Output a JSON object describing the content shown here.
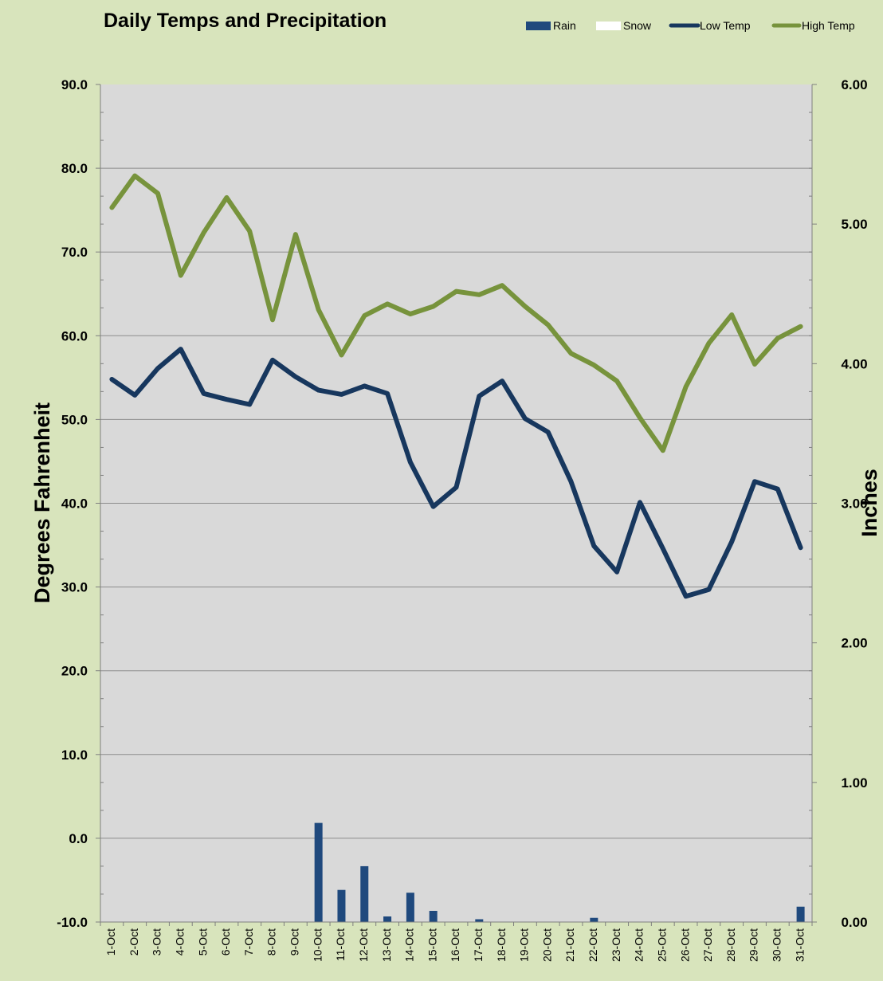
{
  "chart_data": {
    "type": "line",
    "title": "Daily Temps and Precipitation",
    "categories": [
      "1-Oct",
      "2-Oct",
      "3-Oct",
      "4-Oct",
      "5-Oct",
      "6-Oct",
      "7-Oct",
      "8-Oct",
      "9-Oct",
      "10-Oct",
      "11-Oct",
      "12-Oct",
      "13-Oct",
      "14-Oct",
      "15-Oct",
      "16-Oct",
      "17-Oct",
      "18-Oct",
      "19-Oct",
      "20-Oct",
      "21-Oct",
      "22-Oct",
      "23-Oct",
      "24-Oct",
      "25-Oct",
      "26-Oct",
      "27-Oct",
      "28-Oct",
      "29-Oct",
      "30-Oct",
      "31-Oct"
    ],
    "left_axis": {
      "label": "Degrees Fahrenheit",
      "ylim": [
        -10,
        90
      ],
      "ticks": [
        "-10.0",
        "0.0",
        "10.0",
        "20.0",
        "30.0",
        "40.0",
        "50.0",
        "60.0",
        "70.0",
        "80.0",
        "90.0"
      ]
    },
    "right_axis": {
      "label": "Inches",
      "ylim": [
        0,
        6
      ],
      "ticks": [
        "0.00",
        "1.00",
        "2.00",
        "3.00",
        "4.00",
        "5.00",
        "6.00"
      ]
    },
    "grid": true,
    "legend_position": "top-right",
    "series": [
      {
        "name": "Rain",
        "type": "bar",
        "axis": "right",
        "color": "#1f497d",
        "values": [
          0,
          0,
          0,
          0,
          0,
          0,
          0,
          0,
          0,
          0.71,
          0.23,
          0.4,
          0.04,
          0.21,
          0.08,
          0,
          0.02,
          0,
          0,
          0,
          0,
          0.03,
          0,
          0,
          0,
          0,
          0,
          0,
          0,
          0,
          0.11
        ]
      },
      {
        "name": "Snow",
        "type": "bar",
        "axis": "right",
        "color": "#ffffff",
        "values": [
          0,
          0,
          0,
          0,
          0,
          0,
          0,
          0,
          0,
          0,
          0,
          0,
          0,
          0,
          0,
          0,
          0,
          0,
          0,
          0,
          0,
          0,
          0,
          0,
          0,
          0,
          0,
          0,
          0,
          0,
          0
        ]
      },
      {
        "name": "Low Temp",
        "type": "line",
        "axis": "left",
        "color": "#17375e",
        "values": [
          54.8,
          52.9,
          56.1,
          58.4,
          53.1,
          52.4,
          51.8,
          57.1,
          55.1,
          53.5,
          53.0,
          54.0,
          53.1,
          44.9,
          39.6,
          41.9,
          52.8,
          54.6,
          50.1,
          48.5,
          42.6,
          34.9,
          31.8,
          40.1,
          34.6,
          28.9,
          29.7,
          35.4,
          42.6,
          41.7,
          34.7
        ]
      },
      {
        "name": "High Temp",
        "type": "line",
        "axis": "left",
        "color": "#77933c",
        "values": [
          75.3,
          79.1,
          77.0,
          67.2,
          72.3,
          76.5,
          72.5,
          61.9,
          72.1,
          63.1,
          57.7,
          62.4,
          63.8,
          62.6,
          63.5,
          65.3,
          64.9,
          66.0,
          63.5,
          61.3,
          57.9,
          56.5,
          54.6,
          50.2,
          46.3,
          53.9,
          59.1,
          62.5,
          56.6,
          59.7,
          61.1
        ]
      }
    ]
  }
}
